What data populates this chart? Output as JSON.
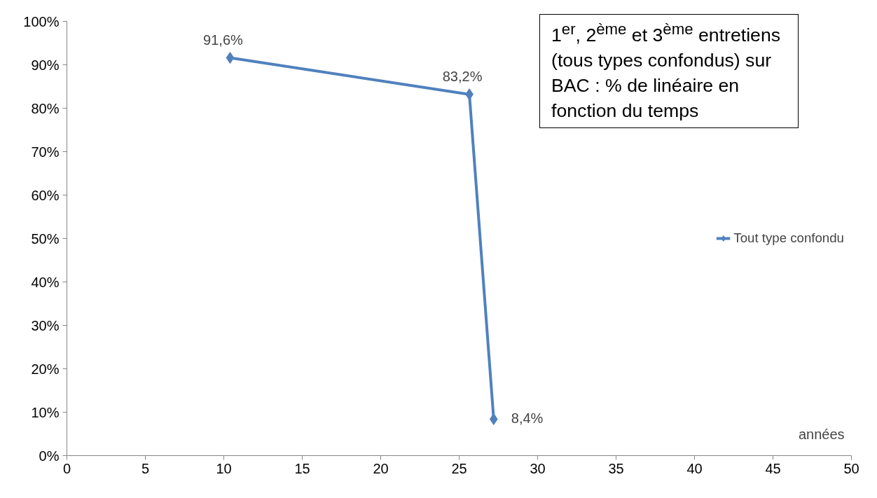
{
  "chart_data": {
    "type": "line",
    "title": "1$^{er}$, 2$^{ème}$ et 3$^{ème}$ entretiens (tous types confondus) sur BAC : % de linéaire en fonction du temps",
    "xlabel": "années",
    "x": [
      10.4,
      25.65,
      27.2
    ],
    "series": [
      {
        "name": "Tout type confondu",
        "color": "#4f81bd",
        "values": [
          91.6,
          83.2,
          8.4
        ],
        "value_labels": [
          "91,6%",
          "83,2%",
          "8,4%"
        ]
      }
    ],
    "xlim": [
      0,
      50
    ],
    "xticks": [
      0,
      5,
      10,
      15,
      20,
      25,
      30,
      35,
      40,
      45,
      50
    ],
    "ylim": [
      0,
      100
    ],
    "yticks": [
      {
        "value": 0,
        "label": "0%"
      },
      {
        "value": 10,
        "label": "10%"
      },
      {
        "value": 20,
        "label": "20%"
      },
      {
        "value": 30,
        "label": "30%"
      },
      {
        "value": 40,
        "label": "40%"
      },
      {
        "value": 50,
        "label": "50%"
      },
      {
        "value": 60,
        "label": "60%"
      },
      {
        "value": 70,
        "label": "70%"
      },
      {
        "value": 80,
        "label": "80%"
      },
      {
        "value": 90,
        "label": "90%"
      },
      {
        "value": 100,
        "label": "100%"
      }
    ],
    "grid": false,
    "legend": "right",
    "marker": "diamond",
    "line_style": "solid"
  }
}
